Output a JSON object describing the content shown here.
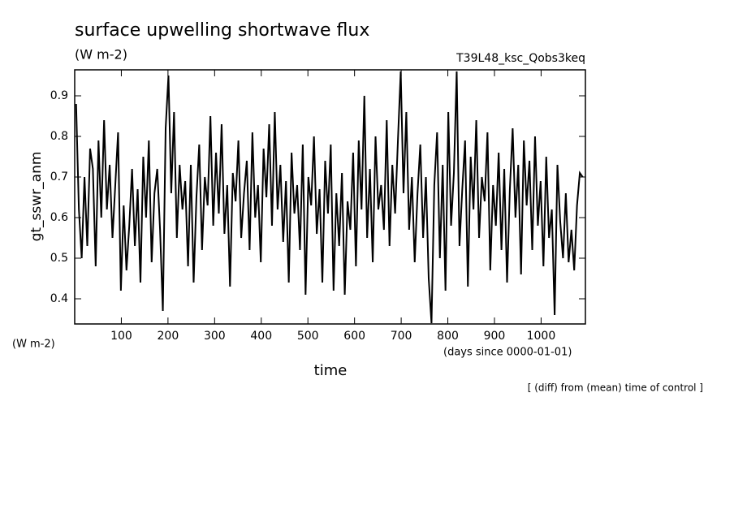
{
  "chart_data": {
    "type": "line",
    "title": "surface upwelling shortwave flux",
    "subtitle": "(W m-2)",
    "run_label": "T39L48_ksc_Qobs3keq",
    "y_label": "gt_sswr_anm",
    "y_unit_label": "(W m-2)",
    "x_label": "time",
    "x_unit_label": "(days since 0000-01-01)",
    "note": "[ (diff) from (mean) time of control ]",
    "xlim": [
      0,
      1095
    ],
    "ylim": [
      0.338,
      0.964
    ],
    "xticks": [
      100,
      200,
      300,
      400,
      500,
      600,
      700,
      800,
      900,
      1000
    ],
    "yticks": [
      0.4,
      0.5,
      0.6,
      0.7,
      0.8,
      0.9
    ],
    "color": "#000000",
    "x": [
      3,
      9,
      15,
      21,
      27,
      33,
      39,
      45,
      51,
      57,
      63,
      69,
      75,
      81,
      87,
      93,
      99,
      105,
      111,
      117,
      123,
      129,
      135,
      141,
      147,
      153,
      159,
      165,
      171,
      177,
      183,
      189,
      195,
      201,
      207,
      213,
      219,
      225,
      231,
      237,
      243,
      249,
      255,
      261,
      267,
      273,
      279,
      285,
      291,
      297,
      303,
      309,
      315,
      321,
      327,
      333,
      339,
      345,
      351,
      357,
      363,
      369,
      375,
      381,
      387,
      393,
      399,
      405,
      411,
      417,
      423,
      429,
      435,
      441,
      447,
      453,
      459,
      465,
      471,
      477,
      483,
      489,
      495,
      501,
      507,
      513,
      519,
      525,
      531,
      537,
      543,
      549,
      555,
      561,
      567,
      573,
      579,
      585,
      591,
      597,
      603,
      609,
      615,
      621,
      627,
      633,
      639,
      645,
      651,
      657,
      663,
      669,
      675,
      681,
      687,
      693,
      699,
      705,
      711,
      717,
      723,
      729,
      735,
      741,
      747,
      753,
      759,
      765,
      771,
      777,
      783,
      789,
      795,
      801,
      807,
      813,
      819,
      825,
      831,
      837,
      843,
      849,
      855,
      861,
      867,
      873,
      879,
      885,
      891,
      897,
      903,
      909,
      915,
      921,
      927,
      933,
      939,
      945,
      951,
      957,
      963,
      969,
      975,
      981,
      987,
      993,
      999,
      1005,
      1011,
      1017,
      1023,
      1029,
      1035,
      1041,
      1047,
      1053,
      1059,
      1065,
      1071,
      1077,
      1083,
      1089
    ],
    "values": [
      0.88,
      0.62,
      0.5,
      0.7,
      0.53,
      0.77,
      0.72,
      0.48,
      0.79,
      0.6,
      0.84,
      0.62,
      0.73,
      0.55,
      0.68,
      0.81,
      0.42,
      0.63,
      0.47,
      0.58,
      0.72,
      0.53,
      0.67,
      0.44,
      0.75,
      0.6,
      0.79,
      0.49,
      0.66,
      0.72,
      0.57,
      0.37,
      0.82,
      0.95,
      0.66,
      0.86,
      0.55,
      0.73,
      0.62,
      0.69,
      0.48,
      0.73,
      0.44,
      0.65,
      0.78,
      0.52,
      0.7,
      0.63,
      0.85,
      0.58,
      0.76,
      0.61,
      0.83,
      0.56,
      0.68,
      0.43,
      0.71,
      0.64,
      0.79,
      0.55,
      0.66,
      0.74,
      0.52,
      0.81,
      0.6,
      0.68,
      0.49,
      0.77,
      0.65,
      0.83,
      0.58,
      0.86,
      0.62,
      0.73,
      0.54,
      0.69,
      0.44,
      0.76,
      0.61,
      0.68,
      0.52,
      0.78,
      0.41,
      0.7,
      0.63,
      0.8,
      0.56,
      0.67,
      0.44,
      0.74,
      0.61,
      0.78,
      0.42,
      0.66,
      0.53,
      0.71,
      0.41,
      0.64,
      0.57,
      0.76,
      0.48,
      0.79,
      0.62,
      0.9,
      0.55,
      0.72,
      0.49,
      0.8,
      0.62,
      0.68,
      0.57,
      0.84,
      0.53,
      0.73,
      0.61,
      0.79,
      0.96,
      0.66,
      0.86,
      0.57,
      0.7,
      0.49,
      0.66,
      0.78,
      0.55,
      0.7,
      0.45,
      0.34,
      0.68,
      0.81,
      0.5,
      0.73,
      0.42,
      0.86,
      0.58,
      0.71,
      0.96,
      0.53,
      0.67,
      0.79,
      0.43,
      0.75,
      0.62,
      0.84,
      0.55,
      0.7,
      0.64,
      0.81,
      0.47,
      0.68,
      0.58,
      0.76,
      0.52,
      0.72,
      0.44,
      0.67,
      0.82,
      0.6,
      0.73,
      0.46,
      0.79,
      0.63,
      0.74,
      0.52,
      0.8,
      0.58,
      0.69,
      0.48,
      0.75,
      0.55,
      0.62,
      0.36,
      0.73,
      0.59,
      0.5,
      0.66,
      0.49,
      0.57,
      0.47,
      0.63,
      0.71,
      0.7
    ]
  }
}
